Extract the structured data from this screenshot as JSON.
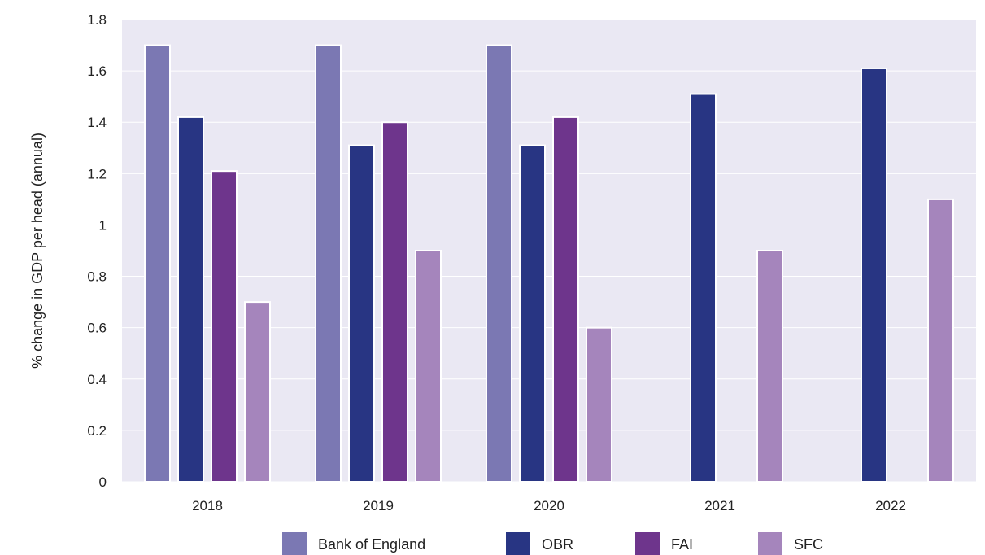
{
  "chart_data": {
    "type": "bar",
    "title": "",
    "xlabel": "",
    "ylabel": "% change in GDP per head (annual)",
    "ylim": [
      0,
      1.8
    ],
    "yticks": [
      0,
      0.2,
      0.4,
      0.6,
      0.8,
      1,
      1.2,
      1.4,
      1.6,
      1.8
    ],
    "ytick_labels": [
      "0",
      "0.2",
      "0.4",
      "0.6",
      "0.8",
      "1",
      "1.2",
      "1.4",
      "1.6",
      "1.8"
    ],
    "categories": [
      "2018",
      "2019",
      "2020",
      "2021",
      "2022"
    ],
    "grid": true,
    "legend_position": "bottom",
    "series": [
      {
        "name": "Bank of England",
        "color": "#7b78b3",
        "values": [
          1.7,
          1.7,
          1.7,
          null,
          null
        ]
      },
      {
        "name": "OBR",
        "color": "#283583",
        "values": [
          1.42,
          1.31,
          1.31,
          1.51,
          1.61
        ]
      },
      {
        "name": "FAI",
        "color": "#6e358c",
        "values": [
          1.21,
          1.4,
          1.42,
          null,
          null
        ]
      },
      {
        "name": "SFC",
        "color": "#a585bc",
        "values": [
          0.7,
          0.9,
          0.6,
          0.9,
          1.1
        ]
      }
    ],
    "plot_background": "#eae8f3"
  }
}
